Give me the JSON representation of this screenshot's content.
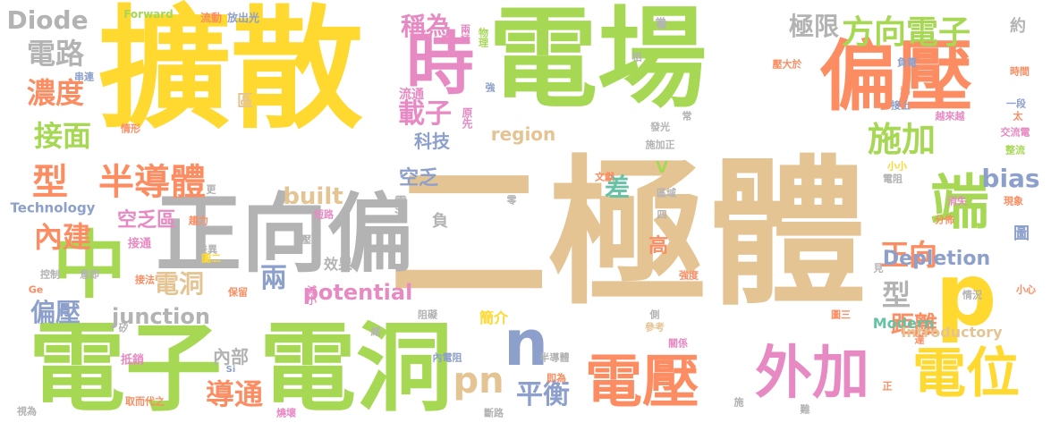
{
  "palette": {
    "green": "#a6d854",
    "yellow": "#ffd92f",
    "tan": "#e5c494",
    "orange": "#fc8d62",
    "grey": "#b3b3b3",
    "blue": "#8da0cb",
    "pink": "#e78ac3",
    "teal": "#66c2a5"
  },
  "words": [
    {
      "text": "二極體",
      "color": "#e5c494"
    },
    {
      "text": "擴散",
      "color": "#ffd92f"
    },
    {
      "text": "電場",
      "color": "#a6d854"
    },
    {
      "text": "電子",
      "color": "#a6d854"
    },
    {
      "text": "電洞",
      "color": "#a6d854"
    },
    {
      "text": "正向偏",
      "color": "#b3b3b3"
    },
    {
      "text": "偏壓",
      "color": "#fc8d62"
    },
    {
      "text": "中",
      "color": "#a6d854"
    },
    {
      "text": "p",
      "color": "#ffd92f"
    },
    {
      "text": "n",
      "color": "#8da0cb"
    },
    {
      "text": "時",
      "color": "#e78ac3"
    },
    {
      "text": "端",
      "color": "#a6d854"
    },
    {
      "text": "電壓",
      "color": "#fc8d62"
    },
    {
      "text": "外加",
      "color": "#e78ac3"
    },
    {
      "text": "電位",
      "color": "#ffd92f"
    },
    {
      "text": "半導體",
      "color": "#fc8d62"
    },
    {
      "text": "型",
      "color": "#fc8d62"
    },
    {
      "text": "施加",
      "color": "#a6d854"
    },
    {
      "text": "方向電子",
      "color": "#a6d854"
    },
    {
      "text": "bias",
      "color": "#8da0cb"
    },
    {
      "text": "pn",
      "color": "#e5c494"
    },
    {
      "text": "導通",
      "color": "#fc8d62"
    },
    {
      "text": "內建",
      "color": "#fc8d62"
    },
    {
      "text": "接面",
      "color": "#a6d854"
    },
    {
      "text": "濃度",
      "color": "#fc8d62"
    },
    {
      "text": "電路",
      "color": "#b3b3b3"
    },
    {
      "text": "Diode",
      "color": "#b3b3b3"
    },
    {
      "text": "稱為",
      "color": "#e78ac3"
    },
    {
      "text": "載子",
      "color": "#e78ac3"
    },
    {
      "text": "built",
      "color": "#e5c494"
    },
    {
      "text": "potential",
      "color": "#e78ac3"
    },
    {
      "text": "junction",
      "color": "#b3b3b3"
    },
    {
      "text": "偏壓",
      "color": "#8da0cb"
    },
    {
      "text": "電洞",
      "color": "#e5c494"
    },
    {
      "text": "兩",
      "color": "#8da0cb"
    },
    {
      "text": "平衡",
      "color": "#8da0cb"
    },
    {
      "text": "差",
      "color": "#66c2a5"
    },
    {
      "text": "空乏",
      "color": "#8da0cb"
    },
    {
      "text": "科技",
      "color": "#8da0cb"
    },
    {
      "text": "極限",
      "color": "#b3b3b3"
    },
    {
      "text": "正向",
      "color": "#fc8d62"
    },
    {
      "text": "型",
      "color": "#b3b3b3"
    },
    {
      "text": "距離",
      "color": "#fc8d62"
    },
    {
      "text": "Depletion",
      "color": "#8da0cb"
    },
    {
      "text": "高",
      "color": "#fc8d62"
    },
    {
      "text": "region",
      "color": "#e5c494"
    },
    {
      "text": "空乏區",
      "color": "#e78ac3"
    },
    {
      "text": "內部",
      "color": "#b3b3b3"
    },
    {
      "text": "簡介",
      "color": "#ffd92f"
    },
    {
      "text": "Modern",
      "color": "#66c2a5"
    },
    {
      "text": "Introductory",
      "color": "#e5c494"
    },
    {
      "text": "Technology",
      "color": "#8da0cb"
    },
    {
      "text": "效果",
      "color": "#b3b3b3"
    },
    {
      "text": "負",
      "color": "#b3b3b3"
    },
    {
      "text": "V",
      "color": "#a6d854"
    },
    {
      "text": "約",
      "color": "#b3b3b3"
    },
    {
      "text": "區",
      "color": "#e5c494"
    },
    {
      "text": "圖",
      "color": "#8da0cb"
    },
    {
      "text": "電流",
      "color": "#b3b3b3"
    },
    {
      "text": "流通",
      "color": "#e78ac3"
    },
    {
      "text": "原先",
      "color": "#e78ac3"
    },
    {
      "text": "接通",
      "color": "#e78ac3"
    },
    {
      "text": "抵銷",
      "color": "#e78ac3"
    },
    {
      "text": "Forward",
      "color": "#a6d854"
    },
    {
      "text": "流動",
      "color": "#fc8d62"
    },
    {
      "text": "放出光",
      "color": "#8da0cb"
    },
    {
      "text": "兩極",
      "color": "#e78ac3"
    },
    {
      "text": "物理",
      "color": "#a6d854"
    },
    {
      "text": "常",
      "color": "#b3b3b3"
    },
    {
      "text": "壓大於",
      "color": "#fc8d62"
    },
    {
      "text": "負電",
      "color": "#8da0cb"
    },
    {
      "text": "時間",
      "color": "#fc8d62"
    },
    {
      "text": "越來越",
      "color": "#e78ac3"
    },
    {
      "text": "一段",
      "color": "#8da0cb"
    },
    {
      "text": "交流電",
      "color": "#e78ac3"
    },
    {
      "text": "整流",
      "color": "#a6d854"
    },
    {
      "text": "現象",
      "color": "#fc8d62"
    },
    {
      "text": "消失",
      "color": "#e78ac3"
    },
    {
      "text": "分佈",
      "color": "#fc8d62"
    },
    {
      "text": "見",
      "color": "#b3b3b3"
    },
    {
      "text": "小心",
      "color": "#fc8d62"
    },
    {
      "text": "情況",
      "color": "#b3b3b3"
    },
    {
      "text": "達",
      "color": "#fc8d62"
    },
    {
      "text": "圖三",
      "color": "#fc8d62"
    },
    {
      "text": "關係",
      "color": "#e78ac3"
    },
    {
      "text": "參考",
      "color": "#e5c494"
    },
    {
      "text": "側",
      "color": "#b3b3b3"
    },
    {
      "text": "強度",
      "color": "#fc8d62"
    },
    {
      "text": "壓下",
      "color": "#b3b3b3"
    },
    {
      "text": "電阻",
      "color": "#b3b3b3"
    },
    {
      "text": "區域",
      "color": "#b3b3b3"
    },
    {
      "text": "文獻",
      "color": "#fc8d62"
    },
    {
      "text": "施加正",
      "color": "#b3b3b3"
    },
    {
      "text": "發光",
      "color": "#b3b3b3"
    },
    {
      "text": "接上",
      "color": "#8da0cb"
    },
    {
      "text": "小小",
      "color": "#ffd92f"
    },
    {
      "text": "短路",
      "color": "#e78ac3"
    },
    {
      "text": "趨力",
      "color": "#fc8d62"
    },
    {
      "text": "差異",
      "color": "#b3b3b3"
    },
    {
      "text": "圖二",
      "color": "#ffd92f"
    },
    {
      "text": "控制",
      "color": "#b3b3b3"
    },
    {
      "text": "意即",
      "color": "#b3b3b3"
    },
    {
      "text": "Ge",
      "color": "#fc8d62"
    },
    {
      "text": "接法",
      "color": "#fc8d62"
    },
    {
      "text": "保留",
      "color": "#fc8d62"
    },
    {
      "text": "減小",
      "color": "#e78ac3"
    },
    {
      "text": "阻礙",
      "color": "#b3b3b3"
    },
    {
      "text": "矽",
      "color": "#b3b3b3"
    },
    {
      "text": "Si",
      "color": "#8da0cb"
    },
    {
      "text": "取而代之",
      "color": "#fc8d62"
    },
    {
      "text": "視為",
      "color": "#b3b3b3"
    },
    {
      "text": "燒壞",
      "color": "#e78ac3"
    },
    {
      "text": "內電阻",
      "color": "#8da0cb"
    },
    {
      "text": "半導體",
      "color": "#b3b3b3"
    },
    {
      "text": "即為",
      "color": "#fc8d62"
    },
    {
      "text": "斷路",
      "color": "#b3b3b3"
    },
    {
      "text": "施",
      "color": "#b3b3b3"
    },
    {
      "text": "難",
      "color": "#b3b3b3"
    },
    {
      "text": "串連",
      "color": "#8da0cb"
    },
    {
      "text": "情形",
      "color": "#fc8d62"
    },
    {
      "text": "更",
      "color": "#b3b3b3"
    },
    {
      "text": "相",
      "color": "#b3b3b3"
    },
    {
      "text": "強",
      "color": "#8da0cb"
    },
    {
      "text": "越",
      "color": "#fc8d62"
    },
    {
      "text": "太",
      "color": "#fc8d62"
    },
    {
      "text": "正",
      "color": "#fc8d62"
    },
    {
      "text": "零",
      "color": "#b3b3b3"
    },
    {
      "text": "四",
      "color": "#b3b3b3"
    },
    {
      "text": "緒",
      "color": "#b3b3b3"
    },
    {
      "text": "帶",
      "color": "#b3b3b3"
    },
    {
      "text": "常",
      "color": "#b3b3b3"
    }
  ]
}
